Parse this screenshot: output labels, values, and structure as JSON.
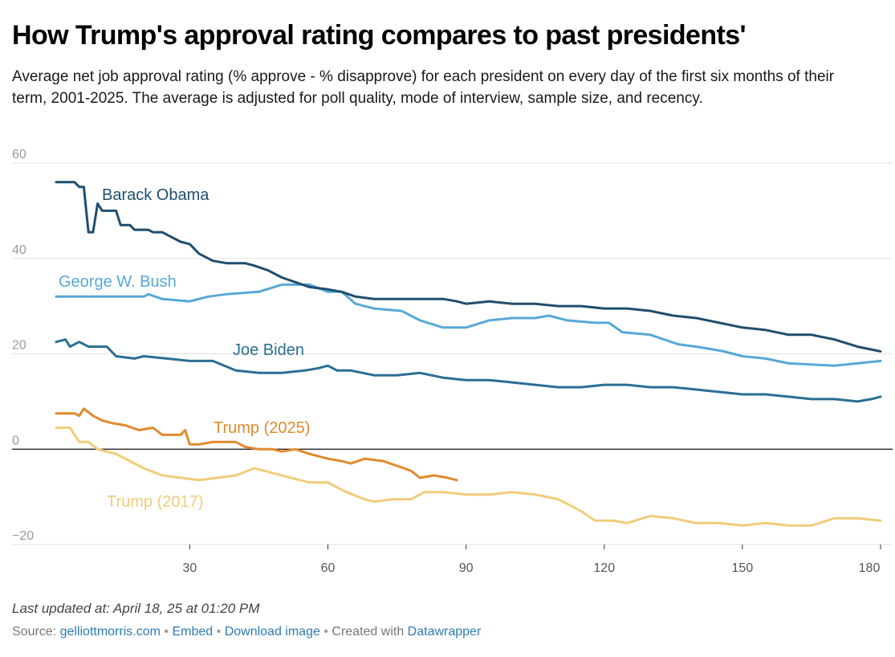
{
  "header": {
    "title": "How Trump's approval rating compares to past presidents'",
    "subtitle": "Average net job approval rating (% approve - % disapprove) for each president on every day of the first six months of their term, 2001-2025. The average is adjusted for poll quality, mode of interview, sample size, and recency."
  },
  "footer": {
    "updated": "Last updated at: April 18, 25 at 01:20 PM",
    "source_label": "Source:",
    "source_link": "gelliottmorris.com",
    "sep": "•",
    "embed": "Embed",
    "download": "Download image",
    "created_with": "Created with",
    "datawrapper": "Datawrapper"
  },
  "chart_data": {
    "type": "line",
    "xlabel": "",
    "ylabel": "",
    "xlim": [
      1,
      180
    ],
    "ylim": [
      -20,
      60
    ],
    "x_ticks": [
      30,
      60,
      90,
      120,
      150,
      180
    ],
    "y_ticks": [
      -20,
      0,
      20,
      40,
      60
    ],
    "y_tick_labels": [
      "−20",
      "0",
      "20",
      "40",
      "60"
    ],
    "grid": true,
    "zero_line": true,
    "series": [
      {
        "name": "Barack Obama",
        "color": "#1f4e6e",
        "points": [
          [
            1,
            56
          ],
          [
            5,
            56
          ],
          [
            6,
            55
          ],
          [
            7,
            55
          ],
          [
            8,
            45.5
          ],
          [
            9,
            45.5
          ],
          [
            10,
            51.5
          ],
          [
            11,
            50
          ],
          [
            14,
            50
          ],
          [
            15,
            47
          ],
          [
            17,
            47
          ],
          [
            18,
            46
          ],
          [
            21,
            46
          ],
          [
            22,
            45.5
          ],
          [
            24,
            45.5
          ],
          [
            25,
            45
          ],
          [
            27,
            44
          ],
          [
            28,
            43.5
          ],
          [
            30,
            43
          ],
          [
            32,
            41
          ],
          [
            35,
            39.5
          ],
          [
            38,
            39
          ],
          [
            42,
            39
          ],
          [
            44,
            38.5
          ],
          [
            47,
            37.5
          ],
          [
            50,
            36
          ],
          [
            53,
            35
          ],
          [
            56,
            34
          ],
          [
            60,
            33.5
          ],
          [
            63,
            33
          ],
          [
            66,
            32
          ],
          [
            70,
            31.5
          ],
          [
            75,
            31.5
          ],
          [
            78,
            31.5
          ],
          [
            80,
            31.5
          ],
          [
            85,
            31.5
          ],
          [
            88,
            31
          ],
          [
            90,
            30.5
          ],
          [
            95,
            31
          ],
          [
            100,
            30.5
          ],
          [
            105,
            30.5
          ],
          [
            110,
            30
          ],
          [
            115,
            30
          ],
          [
            120,
            29.5
          ],
          [
            125,
            29.5
          ],
          [
            130,
            29
          ],
          [
            135,
            28
          ],
          [
            140,
            27.5
          ],
          [
            145,
            26.5
          ],
          [
            150,
            25.5
          ],
          [
            155,
            25
          ],
          [
            160,
            24
          ],
          [
            165,
            24
          ],
          [
            170,
            23
          ],
          [
            175,
            21.5
          ],
          [
            180,
            20.5
          ]
        ]
      },
      {
        "name": "George W. Bush",
        "color": "#58a8d6",
        "points": [
          [
            1,
            32
          ],
          [
            20,
            32
          ],
          [
            21,
            32.5
          ],
          [
            24,
            31.5
          ],
          [
            30,
            31
          ],
          [
            34,
            32
          ],
          [
            38,
            32.5
          ],
          [
            45,
            33
          ],
          [
            50,
            34.5
          ],
          [
            56,
            34.5
          ],
          [
            60,
            33
          ],
          [
            63,
            33
          ],
          [
            66,
            30.5
          ],
          [
            70,
            29.5
          ],
          [
            76,
            29
          ],
          [
            80,
            27
          ],
          [
            85,
            25.5
          ],
          [
            90,
            25.5
          ],
          [
            95,
            27
          ],
          [
            100,
            27.5
          ],
          [
            105,
            27.5
          ],
          [
            108,
            28
          ],
          [
            112,
            27
          ],
          [
            118,
            26.5
          ],
          [
            121,
            26.5
          ],
          [
            124,
            24.5
          ],
          [
            130,
            24
          ],
          [
            136,
            22
          ],
          [
            140,
            21.5
          ],
          [
            146,
            20.5
          ],
          [
            150,
            19.5
          ],
          [
            155,
            19
          ],
          [
            160,
            18
          ],
          [
            170,
            17.5
          ],
          [
            175,
            18
          ],
          [
            180,
            18.5
          ]
        ]
      },
      {
        "name": "Joe Biden",
        "color": "#2b6e93",
        "points": [
          [
            1,
            22.5
          ],
          [
            3,
            23
          ],
          [
            4,
            21.5
          ],
          [
            6,
            22.5
          ],
          [
            8,
            21.5
          ],
          [
            12,
            21.5
          ],
          [
            14,
            19.5
          ],
          [
            18,
            19
          ],
          [
            20,
            19.5
          ],
          [
            25,
            19
          ],
          [
            30,
            18.5
          ],
          [
            35,
            18.5
          ],
          [
            40,
            16.5
          ],
          [
            45,
            16
          ],
          [
            50,
            16
          ],
          [
            55,
            16.5
          ],
          [
            58,
            17
          ],
          [
            60,
            17.5
          ],
          [
            62,
            16.5
          ],
          [
            65,
            16.5
          ],
          [
            70,
            15.5
          ],
          [
            75,
            15.5
          ],
          [
            80,
            16
          ],
          [
            85,
            15
          ],
          [
            90,
            14.5
          ],
          [
            95,
            14.5
          ],
          [
            100,
            14
          ],
          [
            105,
            13.5
          ],
          [
            110,
            13
          ],
          [
            115,
            13
          ],
          [
            120,
            13.5
          ],
          [
            125,
            13.5
          ],
          [
            130,
            13
          ],
          [
            135,
            13
          ],
          [
            140,
            12.5
          ],
          [
            145,
            12
          ],
          [
            150,
            11.5
          ],
          [
            155,
            11.5
          ],
          [
            160,
            11
          ],
          [
            165,
            10.5
          ],
          [
            170,
            10.5
          ],
          [
            175,
            10
          ],
          [
            178,
            10.5
          ],
          [
            180,
            11
          ]
        ]
      },
      {
        "name": "Trump (2025)",
        "color": "#e08a2c",
        "points": [
          [
            1,
            7.5
          ],
          [
            5,
            7.5
          ],
          [
            6,
            7
          ],
          [
            7,
            8.5
          ],
          [
            9,
            7
          ],
          [
            11,
            6
          ],
          [
            13,
            5.5
          ],
          [
            16,
            5
          ],
          [
            19,
            4
          ],
          [
            22,
            4.5
          ],
          [
            24,
            3
          ],
          [
            28,
            3
          ],
          [
            29,
            4
          ],
          [
            30,
            1
          ],
          [
            32,
            1
          ],
          [
            35,
            1.5
          ],
          [
            40,
            1.5
          ],
          [
            42,
            0.5
          ],
          [
            45,
            0
          ],
          [
            48,
            0
          ],
          [
            50,
            -0.5
          ],
          [
            53,
            0
          ],
          [
            56,
            -1
          ],
          [
            60,
            -2
          ],
          [
            63,
            -2.5
          ],
          [
            65,
            -3
          ],
          [
            68,
            -2
          ],
          [
            72,
            -2.5
          ],
          [
            75,
            -3.5
          ],
          [
            78,
            -4.5
          ],
          [
            80,
            -6
          ],
          [
            83,
            -5.5
          ],
          [
            86,
            -6
          ],
          [
            88,
            -6.5
          ]
        ]
      },
      {
        "name": "Trump (2017)",
        "color": "#f2cc7a",
        "points": [
          [
            1,
            4.5
          ],
          [
            4,
            4.5
          ],
          [
            6,
            1.5
          ],
          [
            8,
            1.5
          ],
          [
            10,
            0
          ],
          [
            14,
            -1
          ],
          [
            17,
            -2.5
          ],
          [
            20,
            -4
          ],
          [
            24,
            -5.5
          ],
          [
            28,
            -6
          ],
          [
            32,
            -6.5
          ],
          [
            36,
            -6
          ],
          [
            40,
            -5.5
          ],
          [
            44,
            -4
          ],
          [
            48,
            -5
          ],
          [
            52,
            -6
          ],
          [
            56,
            -7
          ],
          [
            60,
            -7
          ],
          [
            62,
            -8
          ],
          [
            64,
            -9
          ],
          [
            68,
            -10.5
          ],
          [
            70,
            -11
          ],
          [
            74,
            -10.5
          ],
          [
            78,
            -10.5
          ],
          [
            81,
            -9
          ],
          [
            85,
            -9
          ],
          [
            90,
            -9.5
          ],
          [
            95,
            -9.5
          ],
          [
            100,
            -9
          ],
          [
            105,
            -9.5
          ],
          [
            110,
            -10.5
          ],
          [
            115,
            -13
          ],
          [
            118,
            -15
          ],
          [
            122,
            -15
          ],
          [
            125,
            -15.5
          ],
          [
            130,
            -14
          ],
          [
            135,
            -14.5
          ],
          [
            140,
            -15.5
          ],
          [
            145,
            -15.5
          ],
          [
            150,
            -16
          ],
          [
            155,
            -15.5
          ],
          [
            160,
            -16
          ],
          [
            165,
            -16
          ],
          [
            170,
            -14.5
          ],
          [
            175,
            -14.5
          ],
          [
            180,
            -15
          ]
        ]
      }
    ]
  }
}
